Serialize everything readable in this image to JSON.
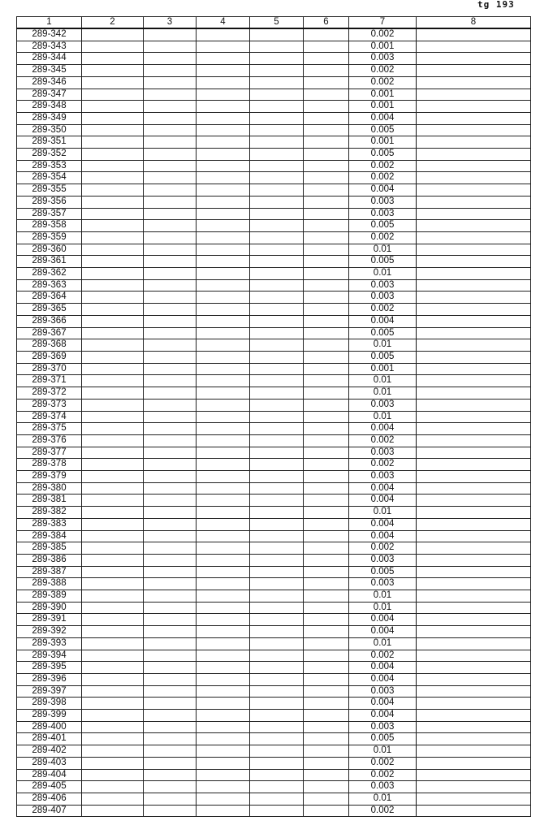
{
  "page_label": "tg 193",
  "table": {
    "headers": [
      "1",
      "2",
      "3",
      "4",
      "5",
      "6",
      "7",
      "8"
    ],
    "rows": [
      [
        "289-342",
        "0.002"
      ],
      [
        "289-343",
        "0.001"
      ],
      [
        "289-344",
        "0.003"
      ],
      [
        "289-345",
        "0.002"
      ],
      [
        "289-346",
        "0.002"
      ],
      [
        "289-347",
        "0.001"
      ],
      [
        "289-348",
        "0.001"
      ],
      [
        "289-349",
        "0.004"
      ],
      [
        "289-350",
        "0.005"
      ],
      [
        "289-351",
        "0.001"
      ],
      [
        "289-352",
        "0.005"
      ],
      [
        "289-353",
        "0.002"
      ],
      [
        "289-354",
        "0.002"
      ],
      [
        "289-355",
        "0.004"
      ],
      [
        "289-356",
        "0.003"
      ],
      [
        "289-357",
        "0.003"
      ],
      [
        "289-358",
        "0.005"
      ],
      [
        "289-359",
        "0.002"
      ],
      [
        "289-360",
        "0.01"
      ],
      [
        "289-361",
        "0.005"
      ],
      [
        "289-362",
        "0.01"
      ],
      [
        "289-363",
        "0.003"
      ],
      [
        "289-364",
        "0.003"
      ],
      [
        "289-365",
        "0.002"
      ],
      [
        "289-366",
        "0.004"
      ],
      [
        "289-367",
        "0.005"
      ],
      [
        "289-368",
        "0.01"
      ],
      [
        "289-369",
        "0.005"
      ],
      [
        "289-370",
        "0.001"
      ],
      [
        "289-371",
        "0.01"
      ],
      [
        "289-372",
        "0.01"
      ],
      [
        "289-373",
        "0.003"
      ],
      [
        "289-374",
        "0.01"
      ],
      [
        "289-375",
        "0.004"
      ],
      [
        "289-376",
        "0.002"
      ],
      [
        "289-377",
        "0.003"
      ],
      [
        "289-378",
        "0.002"
      ],
      [
        "289-379",
        "0.003"
      ],
      [
        "289-380",
        "0.004"
      ],
      [
        "289-381",
        "0.004"
      ],
      [
        "289-382",
        "0.01"
      ],
      [
        "289-383",
        "0.004"
      ],
      [
        "289-384",
        "0.004"
      ],
      [
        "289-385",
        "0.002"
      ],
      [
        "289-386",
        "0.003"
      ],
      [
        "289-387",
        "0.005"
      ],
      [
        "289-388",
        "0.003"
      ],
      [
        "289-389",
        "0.01"
      ],
      [
        "289-390",
        "0.01"
      ],
      [
        "289-391",
        "0.004"
      ],
      [
        "289-392",
        "0.004"
      ],
      [
        "289-393",
        "0.01"
      ],
      [
        "289-394",
        "0.002"
      ],
      [
        "289-395",
        "0.004"
      ],
      [
        "289-396",
        "0.004"
      ],
      [
        "289-397",
        "0.003"
      ],
      [
        "289-398",
        "0.004"
      ],
      [
        "289-399",
        "0.004"
      ],
      [
        "289-400",
        "0.003"
      ],
      [
        "289-401",
        "0.005"
      ],
      [
        "289-402",
        "0.01"
      ],
      [
        "289-403",
        "0.002"
      ],
      [
        "289-404",
        "0.002"
      ],
      [
        "289-405",
        "0.003"
      ],
      [
        "289-406",
        "0.01"
      ],
      [
        "289-407",
        "0.002"
      ]
    ]
  }
}
